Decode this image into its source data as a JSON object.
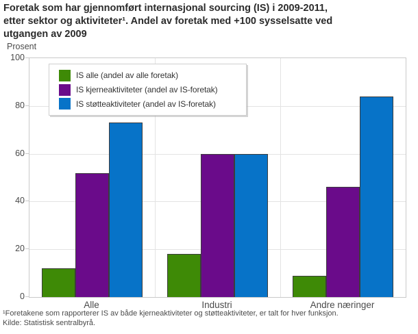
{
  "title": "Foretak som har gjennomført internasjonal sourcing (IS) i 2009-2011,\netter sektor og aktiviteter¹. Andel av foretak med +100 sysselsatte ved\nutgangen av 2009",
  "footnote": "¹Foretakene som rapporterer IS av både kjerneaktiviteter og støtteaktiviteter, er talt for hver funksjon.",
  "source": "Kilde: Statistisk sentralbyrå.",
  "chart_data": {
    "type": "bar",
    "title": "Foretak som har gjennomført internasjonal sourcing (IS) i 2009-2011, etter sektor og aktiviteter. Andel av foretak med +100 sysselsatte ved utgangen av 2009",
    "ylabel": "Prosent",
    "xlabel": "",
    "ylim": [
      0,
      100
    ],
    "yticks": [
      0,
      20,
      40,
      60,
      80,
      100
    ],
    "grid": true,
    "legend_position": "top-left-inside",
    "categories": [
      "Alle",
      "Industri",
      "Andre næringer"
    ],
    "series": [
      {
        "name": "IS alle (andel av alle foretak)",
        "color": "#3e8a06",
        "values": [
          12,
          18,
          9
        ]
      },
      {
        "name": "IS kjerneaktiviteter (andel av IS-foretak)",
        "color": "#6a0b8a",
        "values": [
          52,
          60,
          46
        ]
      },
      {
        "name": "IS støtteaktiviteter (andel av IS-foretak)",
        "color": "#0773c8",
        "values": [
          73,
          60,
          84
        ]
      }
    ]
  },
  "colors": {
    "grid": "#e3e3e3",
    "axis_border": "#c9c9c9",
    "bar_border": "#3c3c3c",
    "text": "#4a4a4a",
    "title_text": "#2b2b2b"
  }
}
